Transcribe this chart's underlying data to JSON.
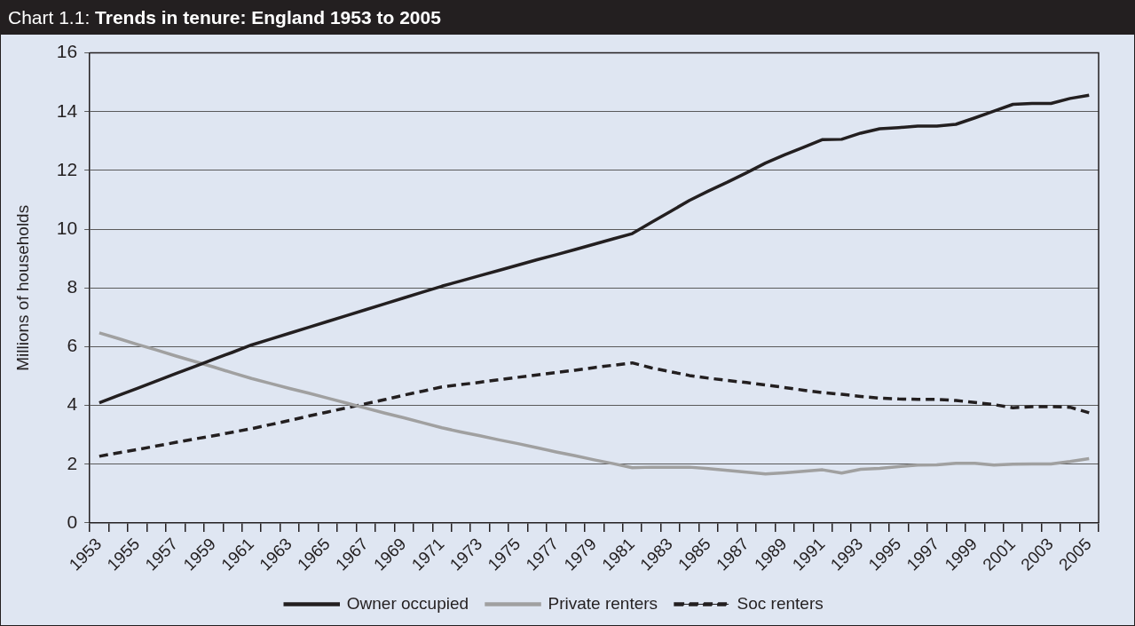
{
  "chart_data": {
    "type": "line",
    "title": "Chart 1.1: Trends in tenure: England 1953 to 2005",
    "ylabel": "Millions of households",
    "categories": [
      "1953",
      null,
      "1955",
      null,
      "1957",
      null,
      "1959",
      null,
      "1961",
      null,
      "1963",
      null,
      "1965",
      null,
      "1967",
      null,
      "1969",
      null,
      "1971",
      null,
      "1973",
      null,
      "1975",
      null,
      "1977",
      null,
      "1979",
      null,
      "1981",
      null,
      "1983",
      null,
      "1985",
      null,
      "1987",
      null,
      "1989",
      null,
      "1991",
      null,
      "1993",
      null,
      "1995",
      null,
      "1997",
      null,
      "1999",
      null,
      "2001",
      null,
      "2003",
      null,
      "2005"
    ],
    "series": [
      {
        "name": "Owner occupied",
        "color": "#231f20",
        "values": [
          4.09,
          4.34,
          4.58,
          4.83,
          5.08,
          5.32,
          5.57,
          5.81,
          6.06,
          6.26,
          6.46,
          6.66,
          6.86,
          7.06,
          7.26,
          7.46,
          7.66,
          7.86,
          8.06,
          8.24,
          8.42,
          8.6,
          8.78,
          8.96,
          9.13,
          9.31,
          9.49,
          9.67,
          9.85,
          10.23,
          10.6,
          10.98,
          11.3,
          11.6,
          11.92,
          12.25,
          12.53,
          12.79,
          13.05,
          13.06,
          13.27,
          13.42,
          13.46,
          13.51,
          13.51,
          13.57,
          13.79,
          14.02,
          14.25,
          14.28,
          14.28,
          14.45,
          14.56
        ]
      },
      {
        "name": "Private renters",
        "color": "#a0a0a0",
        "values": [
          6.47,
          6.28,
          6.08,
          5.89,
          5.69,
          5.5,
          5.31,
          5.11,
          4.92,
          4.75,
          4.58,
          4.42,
          4.25,
          4.08,
          3.91,
          3.74,
          3.58,
          3.41,
          3.24,
          3.1,
          2.97,
          2.83,
          2.7,
          2.56,
          2.42,
          2.29,
          2.15,
          2.02,
          1.88,
          1.9,
          1.9,
          1.9,
          1.85,
          1.79,
          1.73,
          1.67,
          1.71,
          1.76,
          1.81,
          1.7,
          1.83,
          1.86,
          1.92,
          1.97,
          1.98,
          2.03,
          2.03,
          1.97,
          2.0,
          2.01,
          2.01,
          2.09,
          2.19
        ]
      },
      {
        "name": "Soc renters",
        "color": "#231f20",
        "line_style": "dashed",
        "values": [
          2.27,
          2.39,
          2.5,
          2.62,
          2.74,
          2.86,
          2.97,
          3.09,
          3.21,
          3.35,
          3.49,
          3.64,
          3.78,
          3.92,
          4.06,
          4.2,
          4.35,
          4.49,
          4.63,
          4.71,
          4.79,
          4.88,
          4.96,
          5.04,
          5.12,
          5.2,
          5.29,
          5.37,
          5.45,
          5.28,
          5.15,
          5.02,
          4.93,
          4.85,
          4.78,
          4.7,
          4.61,
          4.52,
          4.44,
          4.38,
          4.31,
          4.25,
          4.22,
          4.21,
          4.21,
          4.17,
          4.1,
          4.03,
          3.92,
          3.96,
          3.96,
          3.94,
          3.75
        ]
      }
    ],
    "ylim": [
      0,
      16
    ],
    "yticks": [
      0,
      2,
      4,
      6,
      8,
      10,
      12,
      14,
      16
    ],
    "grid": "y",
    "legend": "bottom",
    "marker": "none",
    "line_style": "solid"
  }
}
